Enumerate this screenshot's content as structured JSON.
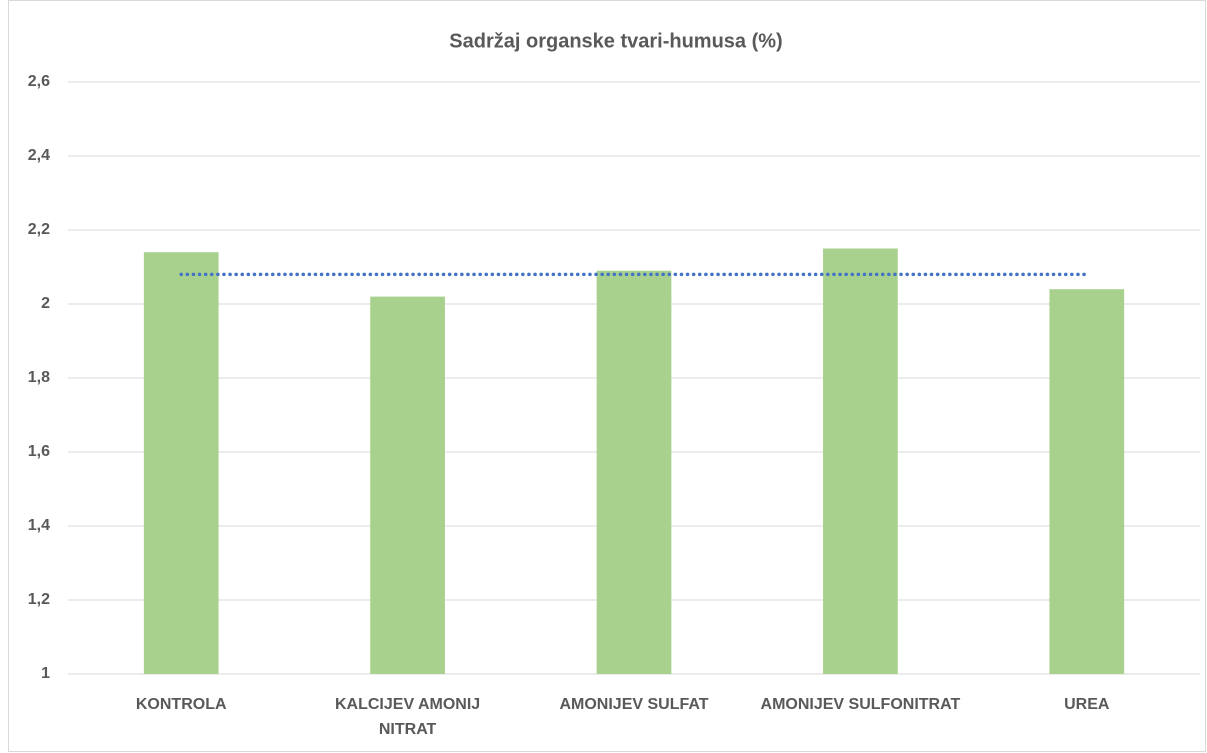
{
  "chart_data": {
    "type": "bar",
    "title": "Sadržaj organske tvari-humusa (%)",
    "categories": [
      "KONTROLA",
      "KALCIJEV AMONIJ NITRAT",
      "AMONIJEV SULFAT",
      "AMONIJEV SULFONITRAT",
      "UREA"
    ],
    "values": [
      2.14,
      2.02,
      2.09,
      2.15,
      2.04
    ],
    "color": "#a9d18e",
    "average_line": {
      "value": 2.08,
      "color": "#4472c4"
    },
    "ylim": [
      1,
      2.6
    ],
    "yticks": [
      1,
      {
        "value": 1.2,
        "label": "1,2"
      },
      {
        "value": 1.4,
        "label": "1,4"
      },
      {
        "value": 1.6,
        "label": "1,6"
      },
      {
        "value": 1.8,
        "label": "1,8"
      },
      2,
      {
        "value": 2.2,
        "label": "2,2"
      },
      {
        "value": 2.4,
        "label": "2,4"
      },
      {
        "value": 2.6,
        "label": "2,6"
      }
    ],
    "grid": true
  }
}
